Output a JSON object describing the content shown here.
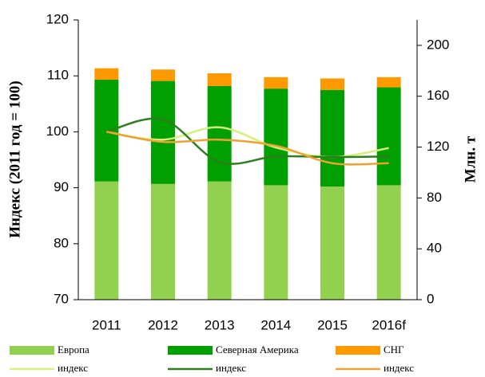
{
  "chart_data": {
    "type": "bar",
    "stacked": true,
    "ylabel": "Индекс (2011 год = 100)",
    "y2label": "Млн. т",
    "categories": [
      "2011",
      "2012",
      "2013",
      "2014",
      "2015",
      "2016f"
    ],
    "ylim": [
      70,
      120
    ],
    "yticks": [
      70,
      80,
      90,
      100,
      110,
      120
    ],
    "y2lim": [
      0,
      220
    ],
    "y2ticks": [
      0,
      40,
      80,
      120,
      160,
      200
    ],
    "series": [
      {
        "name": "Европа",
        "type": "bar",
        "axis": "y2",
        "color": "#92d050",
        "values": [
          93,
          91,
          93,
          90,
          89,
          90
        ]
      },
      {
        "name": "Северная Америка",
        "type": "bar",
        "axis": "y2",
        "color": "#00a000",
        "values": [
          80,
          81,
          75,
          76,
          76,
          77
        ]
      },
      {
        "name": "СНГ",
        "type": "bar",
        "axis": "y2",
        "color": "#ff9900",
        "values": [
          9,
          9,
          10,
          9,
          9,
          8
        ]
      },
      {
        "name": "индекс",
        "type": "line",
        "color": "#d4f07a",
        "values": [
          100,
          98.6,
          100.8,
          97.2,
          95.5,
          97.1
        ]
      },
      {
        "name": "индекс",
        "type": "line",
        "color": "#2e7d1e",
        "values": [
          100,
          102.2,
          94.6,
          95.6,
          95.5,
          95.6
        ]
      },
      {
        "name": "индекс",
        "type": "line",
        "color": "#f0a030",
        "values": [
          100,
          98.2,
          98.6,
          97.5,
          94.4,
          94.4
        ]
      }
    ]
  }
}
